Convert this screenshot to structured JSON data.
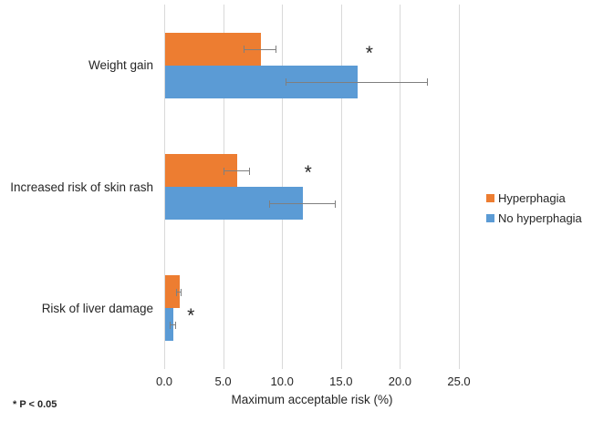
{
  "chart_data": {
    "type": "bar",
    "orientation": "horizontal",
    "title": "",
    "xlabel": "Maximum acceptable risk (%)",
    "ylabel": "",
    "categories": [
      "Weight gain",
      "Increased risk of skin rash",
      "Risk of liver damage"
    ],
    "series": [
      {
        "name": "Hyperphagia",
        "color": "#ED7D31",
        "values": [
          8.1,
          6.1,
          1.2
        ],
        "errors": [
          1.35,
          1.1,
          0.2
        ]
      },
      {
        "name": "No hyperphagia",
        "color": "#5B9BD5",
        "values": [
          16.3,
          11.7,
          0.7
        ],
        "errors": [
          6.0,
          2.8,
          0.25
        ]
      }
    ],
    "x_ticks": [
      "0.0",
      "5.0",
      "10.0",
      "15.0",
      "20.0",
      "25.0"
    ],
    "x_tick_values": [
      0,
      5,
      10,
      15,
      20,
      25
    ],
    "xlim": [
      0,
      27
    ],
    "grid": "vertical",
    "legend_position": "right",
    "gridline_color": "#d9d9d9",
    "error_bar_color": "#7f7f7f",
    "text_color": "#262626",
    "background_color": "#ffffff",
    "significance_marker": "*",
    "significance_note": "* P < 0.05",
    "significance_markers": [
      {
        "category_index": 0,
        "x": 17.4,
        "band_y_frac": 0.39
      },
      {
        "category_index": 1,
        "x": 12.2,
        "band_y_frac": 0.37
      },
      {
        "category_index": 2,
        "x": 2.25,
        "band_y_frac": 0.55
      }
    ]
  }
}
